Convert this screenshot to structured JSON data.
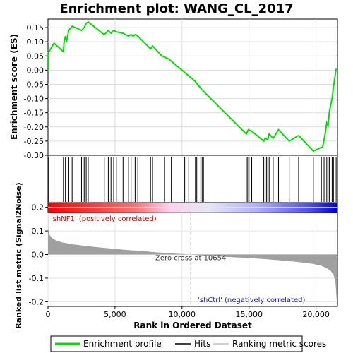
{
  "chart_data": [
    {
      "type": "line",
      "title": "Enrichment plot: WANG_CL_2017",
      "ylabel": "Enrichment score (ES)",
      "xlim": [
        0,
        21600
      ],
      "ylim": [
        -0.3,
        0.18
      ],
      "yticks": [
        -0.3,
        -0.25,
        -0.2,
        -0.15,
        -0.1,
        -0.05,
        0.0,
        0.05,
        0.1,
        0.15
      ],
      "ytick_labels": [
        "-0.30",
        "-0.25",
        "-0.20",
        "-0.15",
        "-0.10",
        "-0.05",
        "0.00",
        "0.05",
        "0.10",
        "0.15"
      ],
      "grid": true,
      "series": [
        {
          "name": "Enrichment profile",
          "color": "#00e000",
          "x": [
            0,
            10,
            450,
            1150,
            1200,
            1300,
            1380,
            1550,
            1800,
            2500,
            2700,
            2850,
            3000,
            4200,
            4500,
            4700,
            4900,
            5100,
            5600,
            6000,
            6200,
            6350,
            6500,
            6700,
            7650,
            7800,
            8500,
            9000,
            10000,
            11000,
            11500,
            14800,
            14950,
            15200,
            16100,
            16200,
            16400,
            16500,
            16800,
            17200,
            18000,
            18700,
            19800,
            20500,
            20700,
            20800,
            20900,
            21000,
            21200,
            21300,
            21500
          ],
          "y": [
            0.0,
            0.06,
            0.095,
            0.065,
            0.1,
            0.12,
            0.1,
            0.14,
            0.155,
            0.14,
            0.15,
            0.165,
            0.17,
            0.125,
            0.14,
            0.13,
            0.14,
            0.135,
            0.13,
            0.12,
            0.125,
            0.12,
            0.125,
            0.12,
            0.075,
            0.085,
            0.05,
            0.04,
            0.0,
            -0.04,
            -0.07,
            -0.225,
            -0.21,
            -0.215,
            -0.25,
            -0.24,
            -0.245,
            -0.225,
            -0.24,
            -0.21,
            -0.25,
            -0.23,
            -0.285,
            -0.27,
            -0.22,
            -0.185,
            -0.195,
            -0.145,
            -0.1,
            -0.06,
            0.005
          ]
        }
      ]
    },
    {
      "type": "hits",
      "xlim": [
        0,
        21600
      ],
      "hits_x": [
        60,
        450,
        1150,
        1300,
        1550,
        1800,
        2500,
        2700,
        2850,
        3000,
        4200,
        4500,
        4700,
        4900,
        5100,
        5600,
        6000,
        6200,
        6350,
        6500,
        6700,
        7650,
        7800,
        8700,
        9200,
        10200,
        10500,
        11000,
        11100,
        11400,
        11500,
        11600,
        14800,
        14900,
        15000,
        15200,
        16100,
        16300,
        16400,
        16500,
        16800,
        17200,
        18000,
        18700,
        19800,
        20400,
        20600,
        20800,
        20900,
        21000,
        21200,
        21300,
        21500
      ],
      "gradient_colors": [
        "#ff0000",
        "#ff6a6a",
        "#ffc8e6",
        "#e0e0f0",
        "#aaaaff",
        "#0000e0"
      ]
    },
    {
      "type": "area",
      "ylabel": "Ranked list metric (Signal2Noise)",
      "xlabel": "Rank in Ordered Dataset",
      "xlim": [
        0,
        21600
      ],
      "ylim": [
        -0.22,
        0.22
      ],
      "xticks": [
        0,
        5000,
        10000,
        15000,
        20000
      ],
      "xtick_labels": [
        "0",
        "5,000",
        "10,000",
        "15,000",
        "20,000"
      ],
      "yticks": [
        -0.2,
        -0.1,
        0.0,
        0.1,
        0.2
      ],
      "ytick_labels": [
        "-0.2",
        "-0.1",
        "0.0",
        "0.1",
        "0.2"
      ],
      "x": [
        0,
        20,
        100,
        300,
        600,
        1000,
        2000,
        3000,
        4000,
        5000,
        6000,
        7000,
        8000,
        9000,
        10000,
        10654,
        11000,
        12000,
        13000,
        14000,
        15000,
        16000,
        17000,
        18000,
        19000,
        19800,
        20400,
        20800,
        21100,
        21300,
        21450,
        21550
      ],
      "values": [
        0.215,
        0.11,
        0.085,
        0.07,
        0.06,
        0.052,
        0.042,
        0.035,
        0.029,
        0.024,
        0.019,
        0.015,
        0.01,
        0.006,
        0.002,
        0.0,
        -0.002,
        -0.006,
        -0.009,
        -0.012,
        -0.015,
        -0.019,
        -0.023,
        -0.028,
        -0.034,
        -0.04,
        -0.048,
        -0.058,
        -0.07,
        -0.085,
        -0.12,
        -0.205
      ],
      "color": "#a0a0a0",
      "annotations": {
        "positive": "'shNF1' (positively correlated)",
        "negative": "'shCtrl' (negatively correlated)",
        "zero_cross": "Zero cross at 10654"
      },
      "zero_cross_x": 10654
    }
  ],
  "legend": {
    "placement": "bottom",
    "items": [
      {
        "label": "Enrichment profile",
        "color": "#00e000"
      },
      {
        "label": "Hits",
        "color": "#000000"
      },
      {
        "label": "Ranking metric scores",
        "color": "#c0c0c0"
      }
    ]
  }
}
